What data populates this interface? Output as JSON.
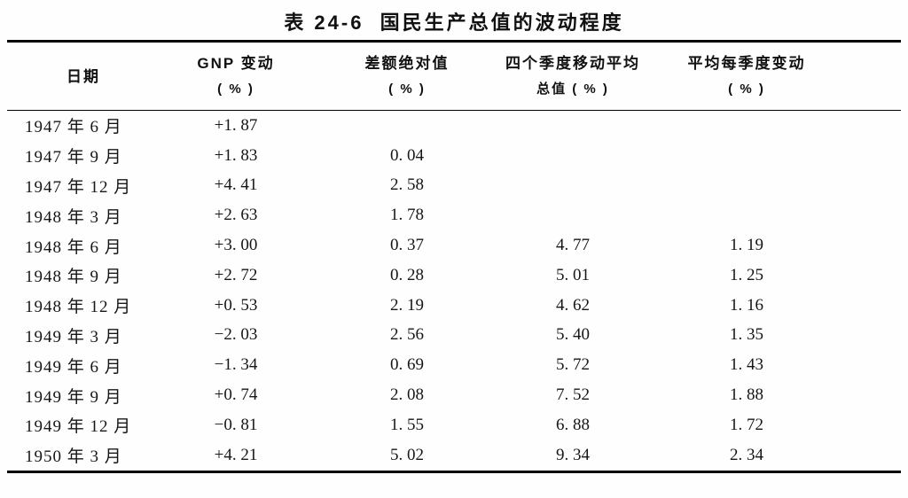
{
  "title": "表 24-6  国民生产总值的波动程度",
  "colors": {
    "background": "#fefefe",
    "text": "#161616",
    "rule": "#000000"
  },
  "table": {
    "columns": [
      {
        "label": "日期",
        "unit": ""
      },
      {
        "label": "GNP 变动",
        "unit": "( % )"
      },
      {
        "label": "差额绝对值",
        "unit": "( % )"
      },
      {
        "label": "四个季度移动平均",
        "unit": "总值 ( % )"
      },
      {
        "label": "平均每季度变动",
        "unit": "( % )"
      }
    ],
    "rows": [
      {
        "date": "1947 年 6 月",
        "gnp": "+1. 87",
        "diff": "",
        "moving_avg": "",
        "avg_change": ""
      },
      {
        "date": "1947 年 9 月",
        "gnp": "+1. 83",
        "diff": "0. 04",
        "moving_avg": "",
        "avg_change": ""
      },
      {
        "date": "1947 年 12 月",
        "gnp": "+4. 41",
        "diff": "2. 58",
        "moving_avg": "",
        "avg_change": ""
      },
      {
        "date": "1948 年 3 月",
        "gnp": "+2. 63",
        "diff": "1. 78",
        "moving_avg": "",
        "avg_change": ""
      },
      {
        "date": "1948 年 6 月",
        "gnp": "+3. 00",
        "diff": "0. 37",
        "moving_avg": "4. 77",
        "avg_change": "1. 19"
      },
      {
        "date": "1948 年 9 月",
        "gnp": "+2. 72",
        "diff": "0. 28",
        "moving_avg": "5. 01",
        "avg_change": "1. 25"
      },
      {
        "date": "1948 年 12 月",
        "gnp": "+0. 53",
        "diff": "2. 19",
        "moving_avg": "4. 62",
        "avg_change": "1. 16"
      },
      {
        "date": "1949 年 3 月",
        "gnp": "−2. 03",
        "diff": "2. 56",
        "moving_avg": "5. 40",
        "avg_change": "1. 35"
      },
      {
        "date": "1949 年 6 月",
        "gnp": "−1. 34",
        "diff": "0. 69",
        "moving_avg": "5. 72",
        "avg_change": "1. 43"
      },
      {
        "date": "1949 年 9 月",
        "gnp": "+0. 74",
        "diff": "2. 08",
        "moving_avg": "7. 52",
        "avg_change": "1. 88"
      },
      {
        "date": "1949 年 12 月",
        "gnp": "−0. 81",
        "diff": "1. 55",
        "moving_avg": "6. 88",
        "avg_change": "1. 72"
      },
      {
        "date": "1950 年 3 月",
        "gnp": "+4. 21",
        "diff": "5. 02",
        "moving_avg": "9. 34",
        "avg_change": "2. 34"
      }
    ]
  }
}
